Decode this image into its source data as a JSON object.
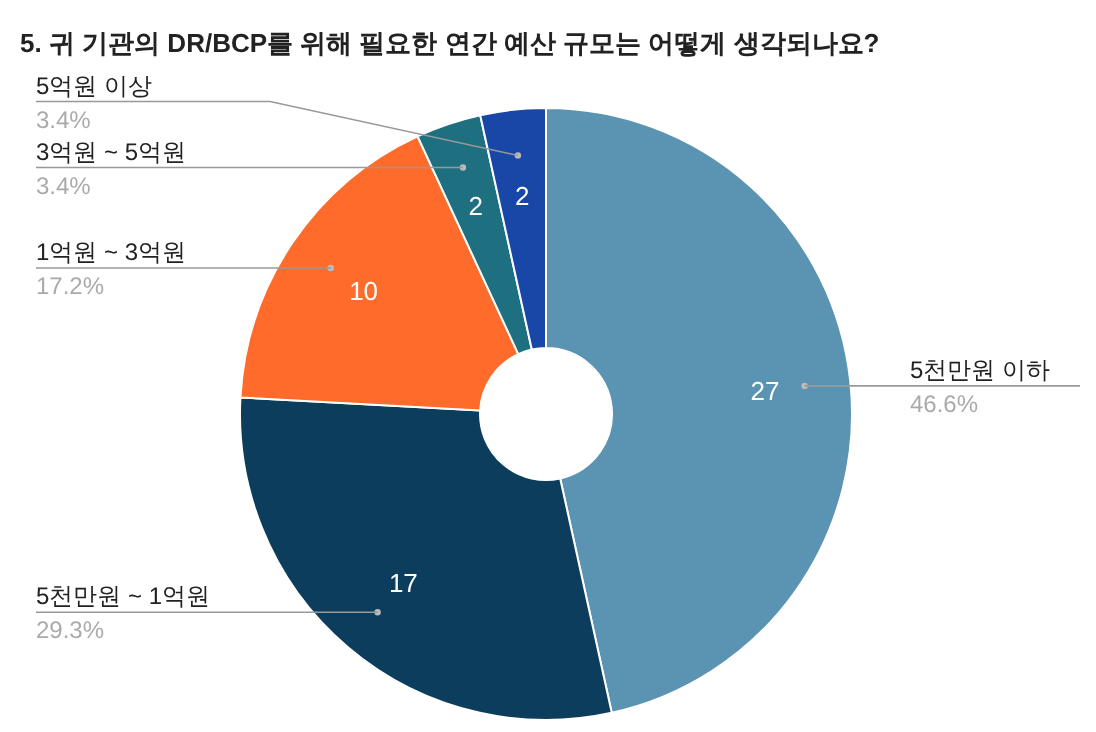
{
  "chart_data": {
    "type": "donut",
    "title": "5. 귀 기관의 DR/BCP를 위해 필요한 연간 예산 규모는 어떻게 생각되나요?",
    "categories": [
      "5천만원 이하",
      "5천만원 ~ 1억원",
      "1억원 ~ 3억원",
      "3억원 ~ 5억원",
      "5억원 이상"
    ],
    "values": [
      27,
      17,
      10,
      2,
      2
    ],
    "colors": [
      "#5b93b3",
      "#0d3d5c",
      "#ff6b2b",
      "#1e7080",
      "#1847a8"
    ],
    "data_labels": true,
    "annotations": [
      "46.6%",
      "29.3%",
      "17.2%",
      "3.4%",
      "3.4%"
    ]
  }
}
